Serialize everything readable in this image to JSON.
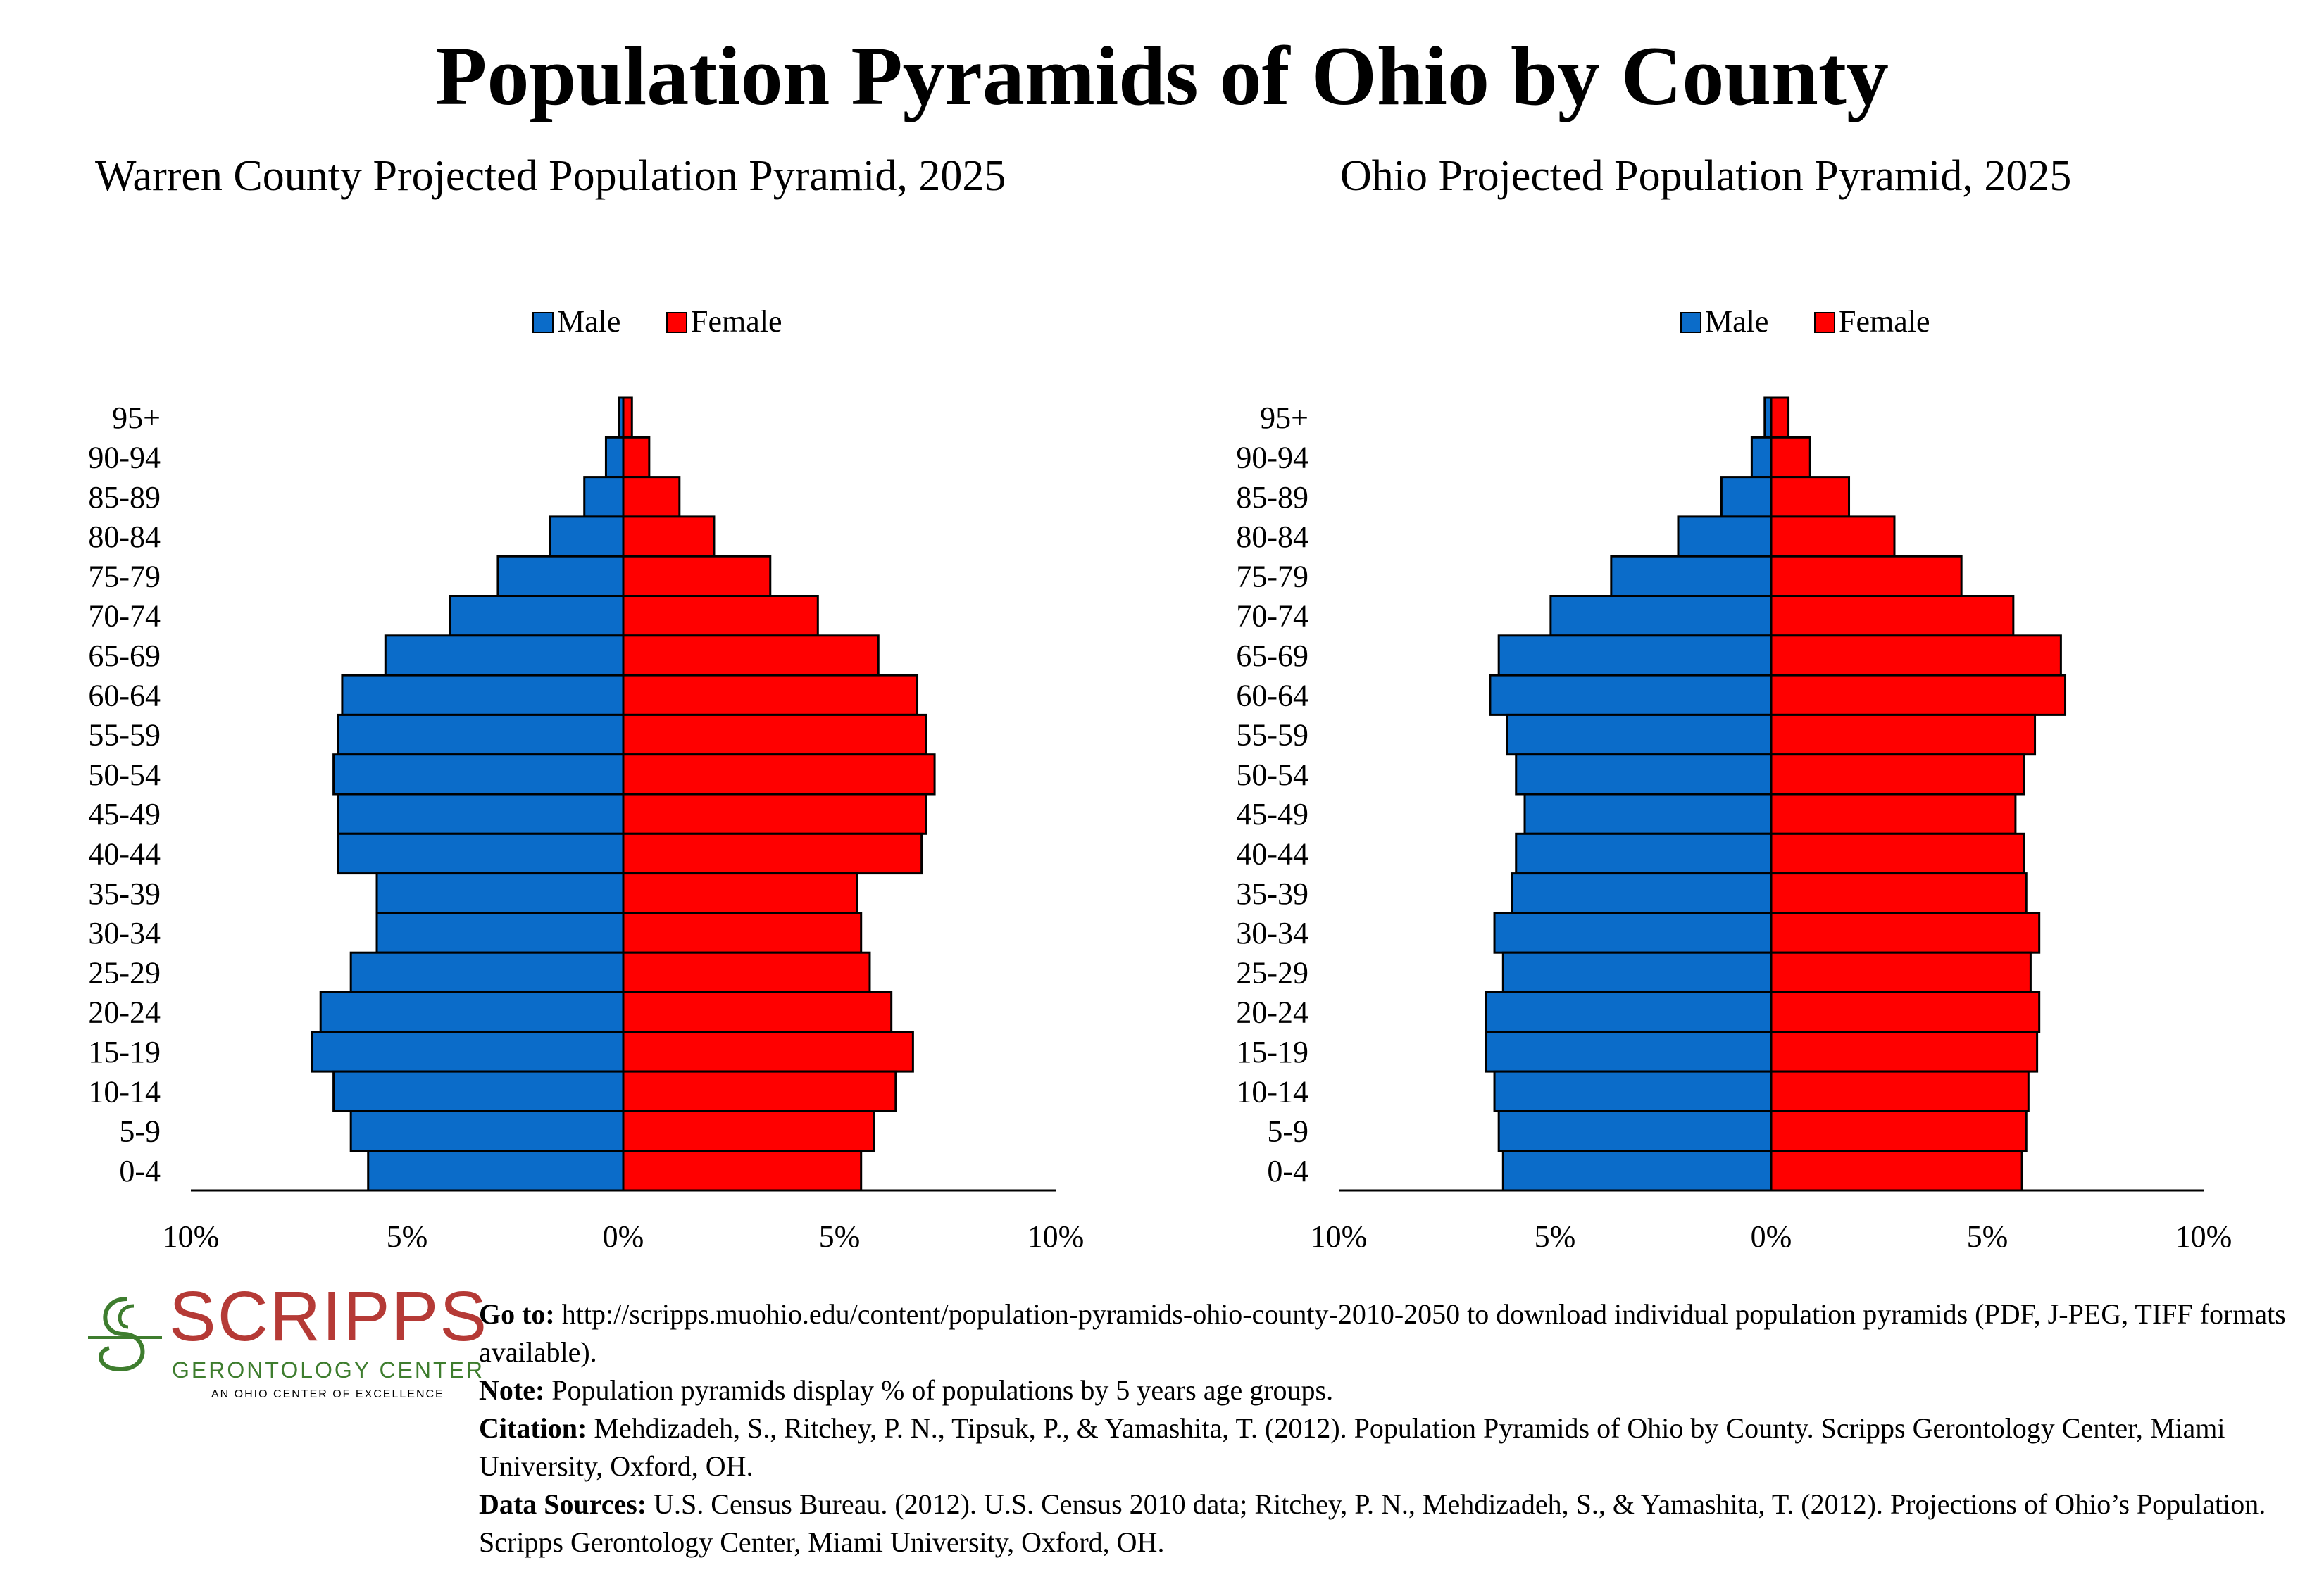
{
  "page": {
    "title": "Population Pyramids of Ohio by County"
  },
  "colors": {
    "male": "#0b6cc9",
    "female": "#ff0000",
    "outline": "#000000",
    "logo_red": "#b53a36",
    "logo_green": "#3e7d2e"
  },
  "chart_data": [
    {
      "type": "bar",
      "orientation": "horizontal-pyramid",
      "title": "Warren County Projected Population Pyramid, 2025",
      "legend_position": "top-center",
      "categories": [
        "95+",
        "90-94",
        "85-89",
        "80-84",
        "75-79",
        "70-74",
        "65-69",
        "60-64",
        "55-59",
        "50-54",
        "45-49",
        "40-44",
        "35-39",
        "30-34",
        "25-29",
        "20-24",
        "15-19",
        "10-14",
        "5-9",
        "0-4"
      ],
      "series": [
        {
          "name": "Male",
          "values": [
            0.1,
            0.4,
            0.9,
            1.7,
            2.9,
            4.0,
            5.5,
            6.5,
            6.6,
            6.7,
            6.6,
            6.6,
            5.7,
            5.7,
            6.3,
            7.0,
            7.2,
            6.7,
            6.3,
            5.9
          ]
        },
        {
          "name": "Female",
          "values": [
            0.2,
            0.6,
            1.3,
            2.1,
            3.4,
            4.5,
            5.9,
            6.8,
            7.0,
            7.2,
            7.0,
            6.9,
            5.4,
            5.5,
            5.7,
            6.2,
            6.7,
            6.3,
            5.8,
            5.5
          ]
        }
      ],
      "x_ticks": [
        "10%",
        "5%",
        "0%",
        "5%",
        "10%"
      ],
      "xlim": [
        -10,
        10
      ],
      "grid": false
    },
    {
      "type": "bar",
      "orientation": "horizontal-pyramid",
      "title": "Ohio Projected Population Pyramid, 2025",
      "legend_position": "top-center",
      "categories": [
        "95+",
        "90-94",
        "85-89",
        "80-84",
        "75-79",
        "70-74",
        "65-69",
        "60-64",
        "55-59",
        "50-54",
        "45-49",
        "40-44",
        "35-39",
        "30-34",
        "25-29",
        "20-24",
        "15-19",
        "10-14",
        "5-9",
        "0-4"
      ],
      "series": [
        {
          "name": "Male",
          "values": [
            0.15,
            0.45,
            1.15,
            2.15,
            3.7,
            5.1,
            6.3,
            6.5,
            6.1,
            5.9,
            5.7,
            5.9,
            6.0,
            6.4,
            6.2,
            6.6,
            6.6,
            6.4,
            6.3,
            6.2
          ]
        },
        {
          "name": "Female",
          "values": [
            0.4,
            0.9,
            1.8,
            2.85,
            4.4,
            5.6,
            6.7,
            6.8,
            6.1,
            5.85,
            5.65,
            5.85,
            5.9,
            6.2,
            6.0,
            6.2,
            6.15,
            5.95,
            5.9,
            5.8
          ]
        }
      ],
      "x_ticks": [
        "10%",
        "5%",
        "0%",
        "5%",
        "10%"
      ],
      "xlim": [
        -10,
        10
      ],
      "grid": false
    }
  ],
  "logo": {
    "name": "SCRIPPS",
    "subtitle": "GERONTOLOGY CENTER",
    "tagline": "AN OHIO CENTER OF EXCELLENCE"
  },
  "footer": {
    "goto_label": "Go to:",
    "goto_text": " http://scripps.muohio.edu/content/population-pyramids-ohio-county-2010-2050 to download individual population pyramids (PDF, J-PEG, TIFF formats available).",
    "note_label": "Note:",
    "note_text": " Population pyramids display % of populations by 5 years age groups.",
    "citation_label": "Citation:",
    "citation_text": " Mehdizadeh, S., Ritchey, P. N., Tipsuk, P., & Yamashita, T. (2012). Population Pyramids of Ohio by County. Scripps Gerontology Center, Miami University, Oxford, OH.",
    "sources_label": "Data Sources:",
    "sources_text": " U.S. Census Bureau. (2012). U.S. Census 2010 data; Ritchey, P. N., Mehdizadeh, S., & Yamashita, T. (2012). Projections of Ohio’s Population. Scripps Gerontology Center, Miami University, Oxford, OH."
  }
}
